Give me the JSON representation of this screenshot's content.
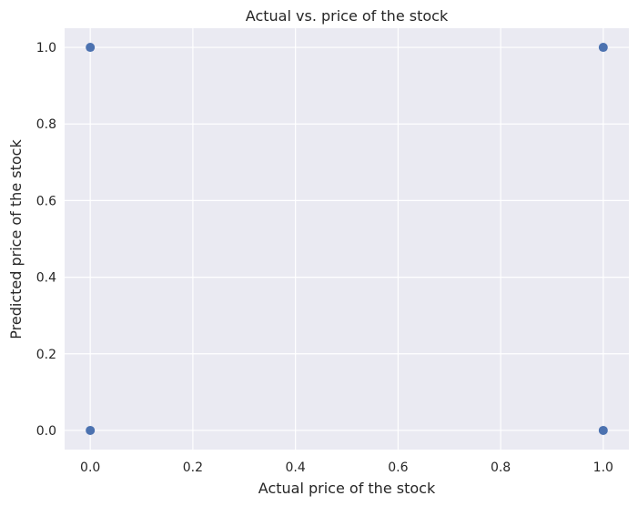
{
  "chart_data": {
    "type": "scatter",
    "title": "Actual vs. price of the stock",
    "xlabel": "Actual price of the stock",
    "ylabel": "Predicted price of the stock",
    "xlim": [
      -0.05,
      1.05
    ],
    "ylim": [
      -0.05,
      1.05
    ],
    "xticks": [
      0.0,
      0.2,
      0.4,
      0.6,
      0.8,
      1.0
    ],
    "yticks": [
      0.0,
      0.2,
      0.4,
      0.6,
      0.8,
      1.0
    ],
    "xtick_labels": [
      "0.0",
      "0.2",
      "0.4",
      "0.6",
      "0.8",
      "1.0"
    ],
    "ytick_labels": [
      "0.0",
      "0.2",
      "0.4",
      "0.6",
      "0.8",
      "1.0"
    ],
    "grid": true,
    "background_color": "#eaeaf2",
    "grid_color": "#ffffff",
    "marker_color": "#4c72b0",
    "points": [
      {
        "x": 0,
        "y": 1
      },
      {
        "x": 0,
        "y": 0
      },
      {
        "x": 1,
        "y": 1
      },
      {
        "x": 1,
        "y": 0
      }
    ]
  }
}
